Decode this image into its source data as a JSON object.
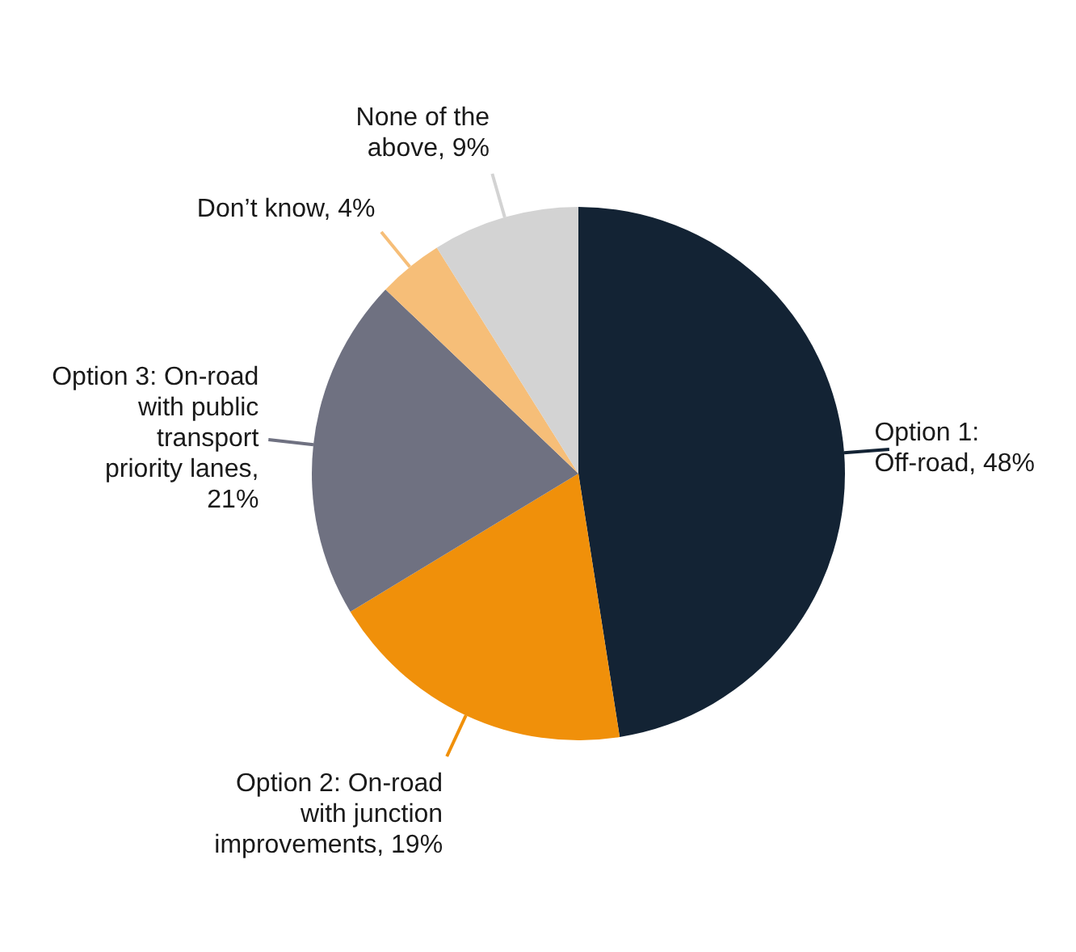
{
  "chart_data": {
    "type": "pie",
    "categories": [
      "Option 1: Off-road, 48%",
      "Option 2: On-road with junction improvements, 19%",
      "Option 3: On-road with public transport priority lanes, 21%",
      "Don’t know, 4%",
      "None of the above, 9%"
    ],
    "values": [
      48,
      19,
      21,
      4,
      9
    ],
    "colors": [
      "#132334",
      "#f0900a",
      "#6f7181",
      "#f6be78",
      "#d3d3d3"
    ],
    "legend": false
  }
}
